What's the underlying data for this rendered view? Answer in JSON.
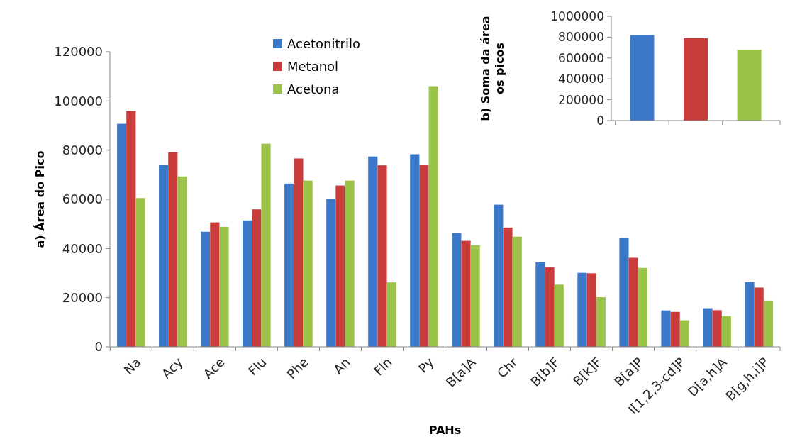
{
  "chart_data": [
    {
      "type": "bar",
      "xlabel": "PAHs",
      "ylabel": "a) Área do Pico",
      "categories": [
        "Na",
        "Acy",
        "Ace",
        "Flu",
        "Phe",
        "An",
        "Fln",
        "Py",
        "B[a]A",
        "Chr",
        "B[b]F",
        "B[k]F",
        "B[a]P",
        "I[1,2,3-cd]P",
        "D[a,h]A",
        "B[g,h,i]P"
      ],
      "series": [
        {
          "name": "Acetonitrilo",
          "color": "#3c78c8",
          "values": [
            90700,
            74000,
            46800,
            51400,
            66400,
            60200,
            77400,
            78300,
            46300,
            57800,
            34400,
            30100,
            44200,
            14800,
            15700,
            26300
          ]
        },
        {
          "name": "Metanol",
          "color": "#c83c3c",
          "values": [
            95900,
            79100,
            50600,
            55900,
            76600,
            65600,
            73800,
            74100,
            43100,
            48500,
            32300,
            29900,
            36200,
            14200,
            14900,
            24100
          ]
        },
        {
          "name": "Acetona",
          "color": "#9bc34a",
          "values": [
            60500,
            69300,
            48800,
            82600,
            67600,
            67600,
            26200,
            106000,
            41300,
            44800,
            25300,
            20200,
            32100,
            10800,
            12500,
            18800
          ]
        }
      ],
      "ylim": [
        0,
        120000
      ],
      "yticks": [
        0,
        20000,
        40000,
        60000,
        80000,
        100000,
        120000
      ],
      "grid": false,
      "legend": "top"
    },
    {
      "type": "bar",
      "ylabel": "b) Soma da área\nos picos",
      "categories": [
        null,
        null,
        null
      ],
      "values": [
        820000,
        790000,
        680000
      ],
      "colors": [
        "#3c78c8",
        "#c83c3c",
        "#9bc34a"
      ],
      "ylim": [
        0,
        1000000
      ],
      "yticks": [
        0,
        200000,
        400000,
        600000,
        800000,
        1000000
      ],
      "grid": false,
      "legend": false
    }
  ]
}
